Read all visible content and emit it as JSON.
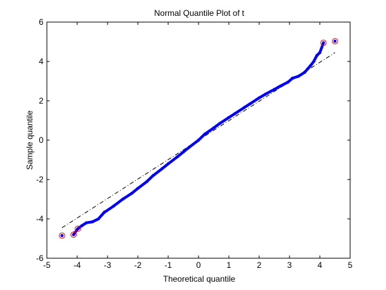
{
  "chart_data": {
    "type": "scatter",
    "title": "Normal Quantile Plot of t",
    "xlabel": "Theoretical quantile",
    "ylabel": "Sample quantile",
    "xlim": [
      -5,
      5
    ],
    "ylim": [
      -6,
      6
    ],
    "xticks": [
      -5,
      -4,
      -3,
      -2,
      -1,
      0,
      1,
      2,
      3,
      4,
      5
    ],
    "yticks": [
      -6,
      -4,
      -2,
      0,
      2,
      4,
      6
    ],
    "xtick_labels": [
      "-5",
      "-4",
      "-3",
      "-2",
      "-1",
      "0",
      "1",
      "2",
      "3",
      "4",
      "5"
    ],
    "ytick_labels": [
      "-6",
      "-4",
      "-2",
      "0",
      "2",
      "4",
      "6"
    ],
    "grid": false,
    "legend": "none",
    "colors": {
      "points": "#0000ff",
      "outliers": "#ff0000",
      "reference_line": "#000000"
    },
    "series": [
      {
        "kind": "points",
        "x": [
          -4.5,
          -4.12,
          -3.98,
          -3.85,
          -3.7,
          -3.5,
          -3.3,
          -3.1,
          -2.8,
          -2.5,
          -2.2,
          -2.0,
          -1.7,
          -1.5,
          -1.2,
          -1.0,
          -0.7,
          -0.5,
          -0.3,
          0.0,
          0.2,
          0.5,
          0.7,
          1.0,
          1.2,
          1.5,
          1.7,
          2.0,
          2.2,
          2.5,
          2.7,
          2.95,
          3.1,
          3.3,
          3.5,
          3.7,
          3.8,
          3.9,
          4.0,
          4.12,
          4.5
        ],
        "y": [
          -4.85,
          -4.8,
          -4.5,
          -4.35,
          -4.2,
          -4.15,
          -4.0,
          -3.65,
          -3.35,
          -3.0,
          -2.7,
          -2.45,
          -2.1,
          -1.8,
          -1.45,
          -1.2,
          -0.85,
          -0.6,
          -0.35,
          0.0,
          0.3,
          0.62,
          0.85,
          1.15,
          1.35,
          1.65,
          1.85,
          2.15,
          2.33,
          2.58,
          2.75,
          2.95,
          3.15,
          3.25,
          3.45,
          3.8,
          4.0,
          4.3,
          4.45,
          4.95,
          5.03
        ]
      },
      {
        "kind": "outliers",
        "x": [
          -4.5,
          -4.12,
          -3.98,
          4.12,
          4.5
        ],
        "y": [
          -4.85,
          -4.8,
          -4.5,
          4.95,
          5.03
        ]
      },
      {
        "kind": "reference-line",
        "x": [
          -4.5,
          4.5
        ],
        "y": [
          -4.45,
          4.45
        ]
      }
    ]
  }
}
